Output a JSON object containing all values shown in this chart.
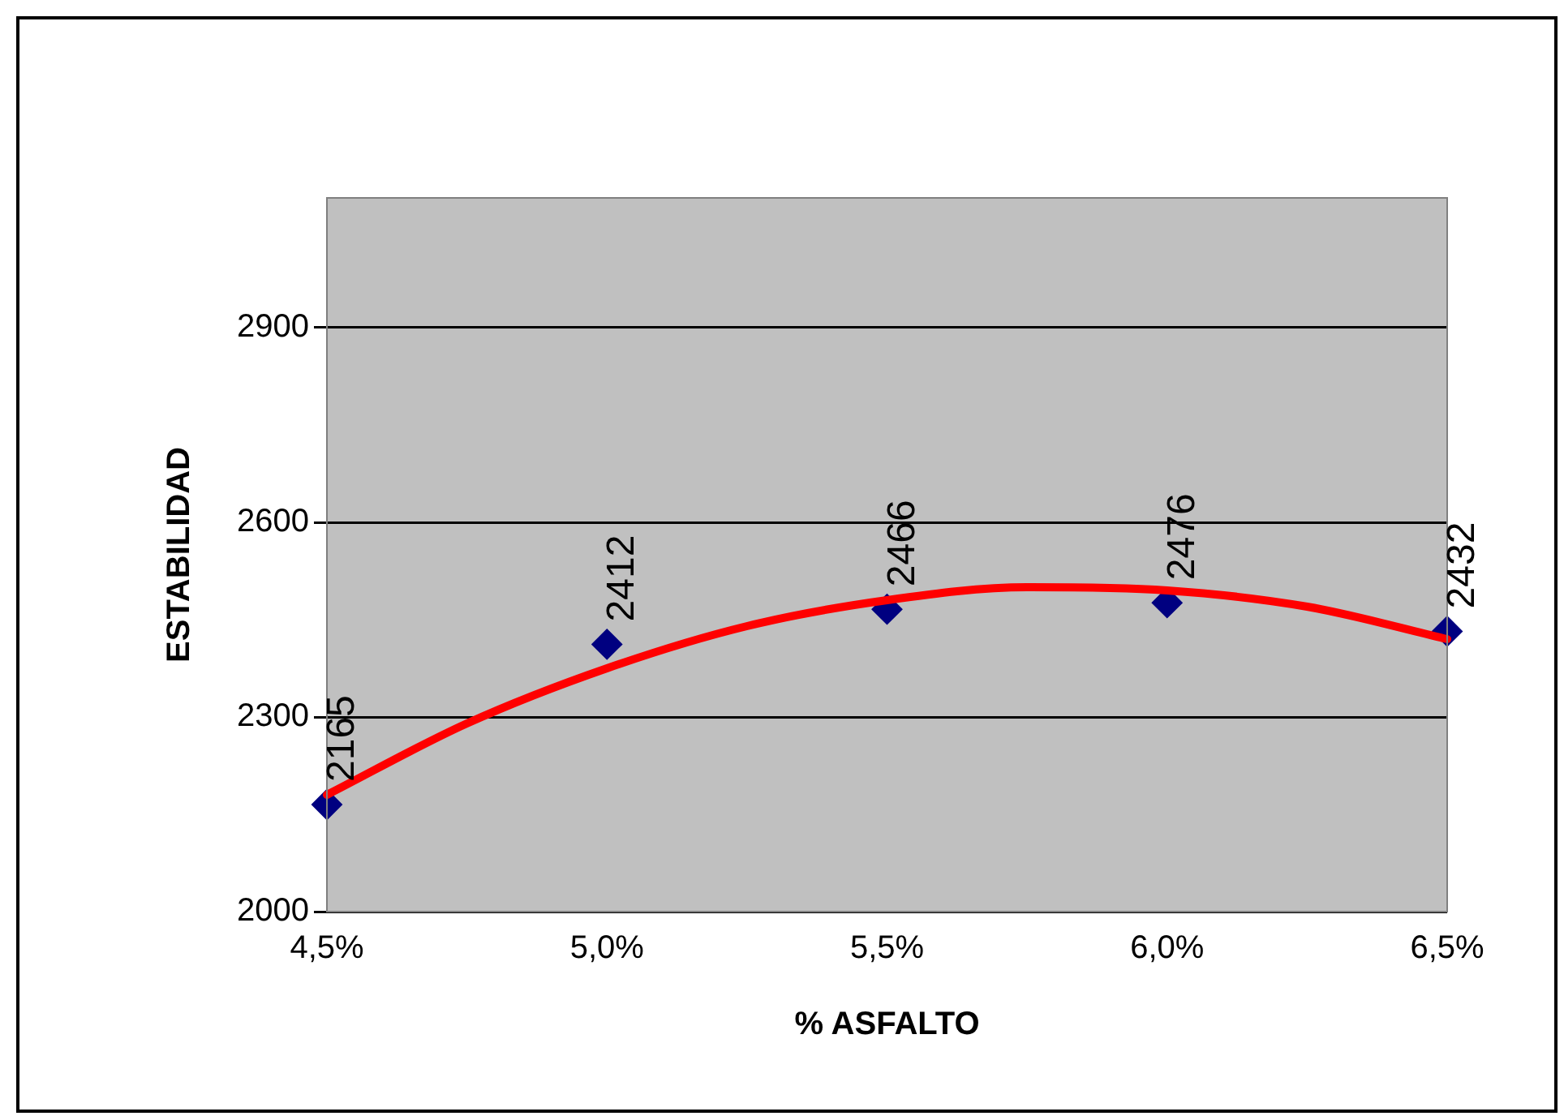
{
  "chart_data": {
    "type": "scatter",
    "xlabel": "% ASFALTO",
    "ylabel": "ESTABILIDAD",
    "x": [
      4.5,
      5.0,
      5.5,
      6.0,
      6.5
    ],
    "series": [
      {
        "color": "#000080",
        "marker": "diamond",
        "values": [
          2165,
          2412,
          2466,
          2476,
          2432
        ],
        "value_labels": [
          "2165",
          "2412",
          "2466",
          "2476",
          "2432"
        ]
      },
      {
        "type": "line",
        "color": "#ff0000",
        "marker": "none",
        "x": [
          4.5,
          4.75,
          5.0,
          5.25,
          5.5,
          5.75,
          6.0,
          6.25,
          6.5
        ],
        "values": [
          2180,
          2290,
          2375,
          2440,
          2480,
          2500,
          2495,
          2470,
          2420
        ]
      }
    ],
    "xlim": [
      4.5,
      6.5
    ],
    "xticks": [
      {
        "value": 4.5,
        "label": "4,5%"
      },
      {
        "value": 5.0,
        "label": "5,0%"
      },
      {
        "value": 5.5,
        "label": "5,5%"
      },
      {
        "value": 6.0,
        "label": "6,0%"
      },
      {
        "value": 6.5,
        "label": "6,5%"
      }
    ],
    "ylim": [
      2000,
      3100
    ],
    "yticks": [
      2000,
      2300,
      2600,
      2900
    ],
    "grid": "y",
    "legend": false
  }
}
